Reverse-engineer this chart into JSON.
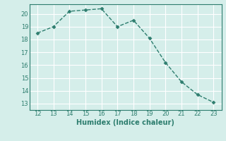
{
  "x": [
    12,
    13,
    14,
    15,
    16,
    17,
    18,
    19,
    20,
    21,
    22,
    23
  ],
  "y": [
    18.5,
    19.0,
    20.2,
    20.3,
    20.4,
    19.0,
    19.5,
    18.1,
    16.2,
    14.7,
    13.7,
    13.1
  ],
  "line_color": "#2d7d6e",
  "marker": "D",
  "marker_size": 2.5,
  "bg_color": "#d5eeea",
  "grid_color": "#ffffff",
  "xlabel": "Humidex (Indice chaleur)",
  "xlim": [
    11.5,
    23.5
  ],
  "ylim": [
    12.5,
    20.75
  ],
  "xticks": [
    12,
    13,
    14,
    15,
    16,
    17,
    18,
    19,
    20,
    21,
    22,
    23
  ],
  "yticks": [
    13,
    14,
    15,
    16,
    17,
    18,
    19,
    20
  ],
  "xlabel_fontsize": 7.0,
  "tick_fontsize": 6.0,
  "linewidth": 1.0
}
